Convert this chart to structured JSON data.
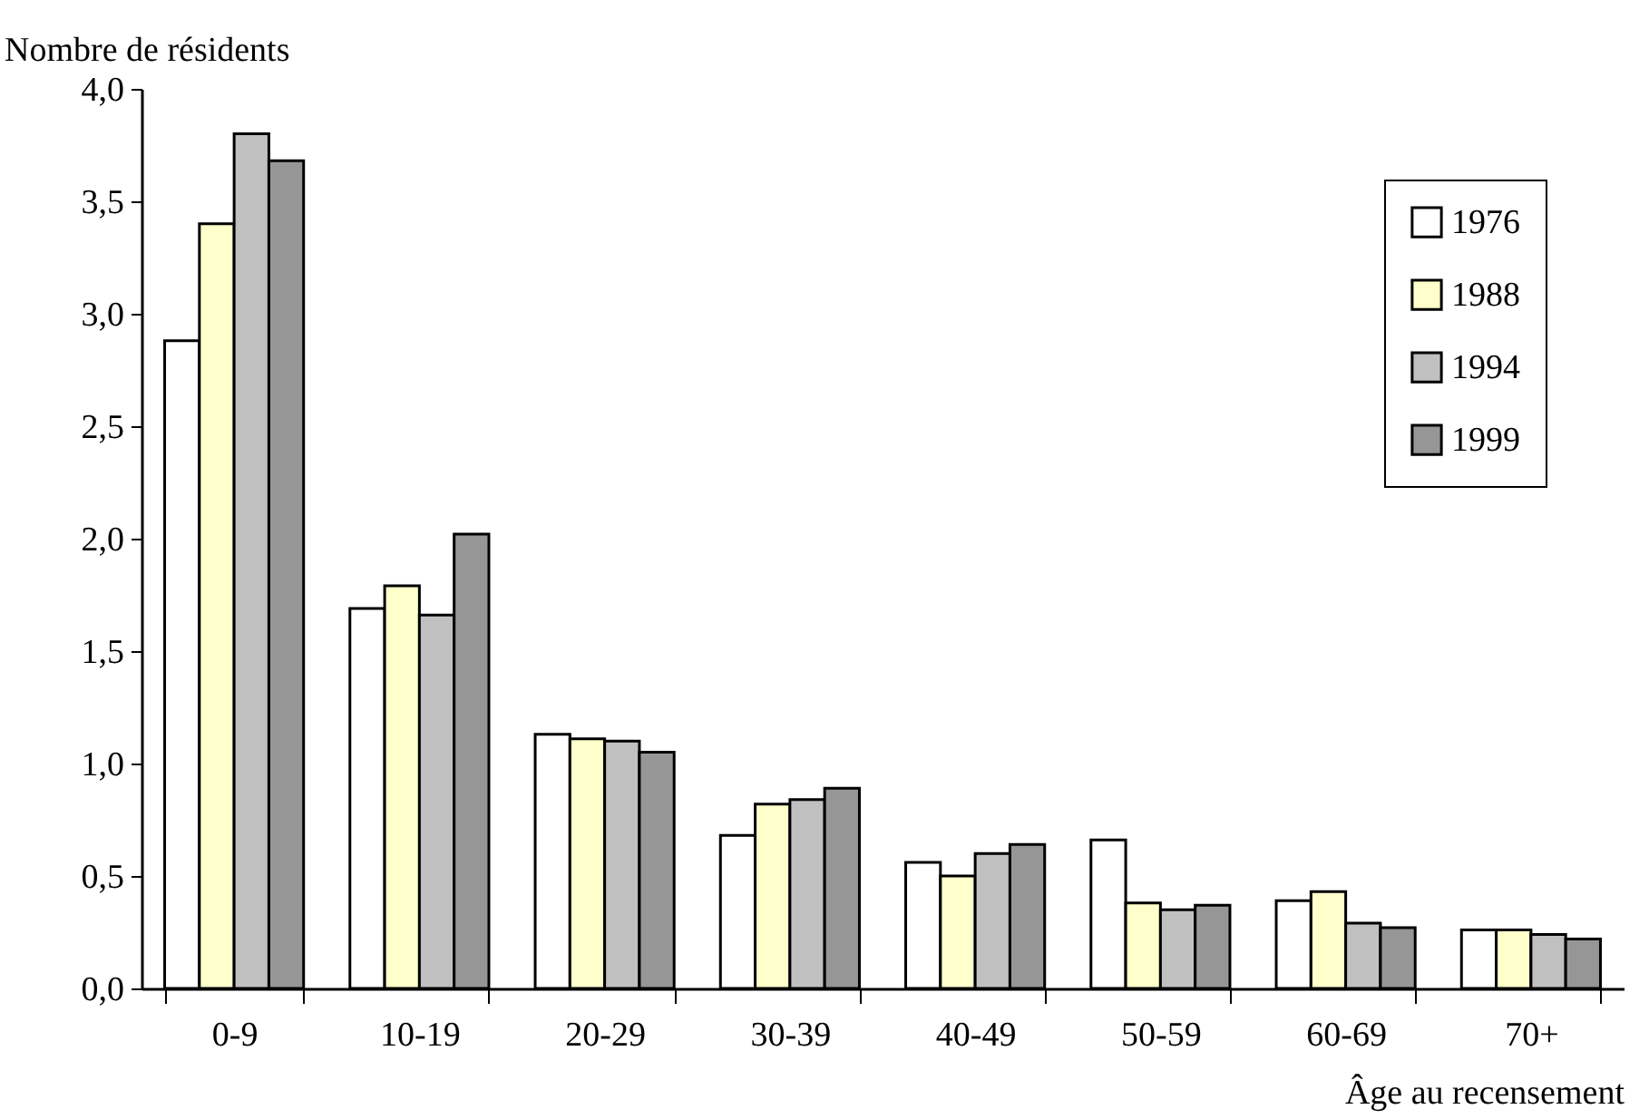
{
  "chart_data": {
    "type": "bar",
    "xlabel": "Âge au recensement",
    "ylabel": "Nombre de résidents",
    "categories": [
      "0-9",
      "10-19",
      "20-29",
      "30-39",
      "40-49",
      "50-59",
      "60-69",
      "70+"
    ],
    "series": [
      {
        "name": "1976",
        "color": "#ffffff",
        "values": [
          2.88,
          1.69,
          1.13,
          0.68,
          0.56,
          0.66,
          0.39,
          0.26
        ]
      },
      {
        "name": "1988",
        "color": "#ffffcc",
        "values": [
          3.4,
          1.79,
          1.11,
          0.82,
          0.5,
          0.38,
          0.43,
          0.26
        ]
      },
      {
        "name": "1994",
        "color": "#c0c0c0",
        "values": [
          3.8,
          1.66,
          1.1,
          0.84,
          0.6,
          0.35,
          0.29,
          0.24
        ]
      },
      {
        "name": "1999",
        "color": "#969696",
        "values": [
          3.68,
          2.02,
          1.05,
          0.89,
          0.64,
          0.37,
          0.27,
          0.22
        ]
      }
    ],
    "ylim": [
      0,
      4
    ],
    "yticks": [
      {
        "value": 0,
        "label": "0,0"
      },
      {
        "value": 0.5,
        "label": "0,5"
      },
      {
        "value": 1,
        "label": "1,0"
      },
      {
        "value": 1.5,
        "label": "1,5"
      },
      {
        "value": 2,
        "label": "2,0"
      },
      {
        "value": 2.5,
        "label": "2,5"
      },
      {
        "value": 3,
        "label": "3,0"
      },
      {
        "value": 3.5,
        "label": "3,5"
      },
      {
        "value": 4,
        "label": "4,0"
      }
    ],
    "legend": "top right",
    "grid": false
  }
}
